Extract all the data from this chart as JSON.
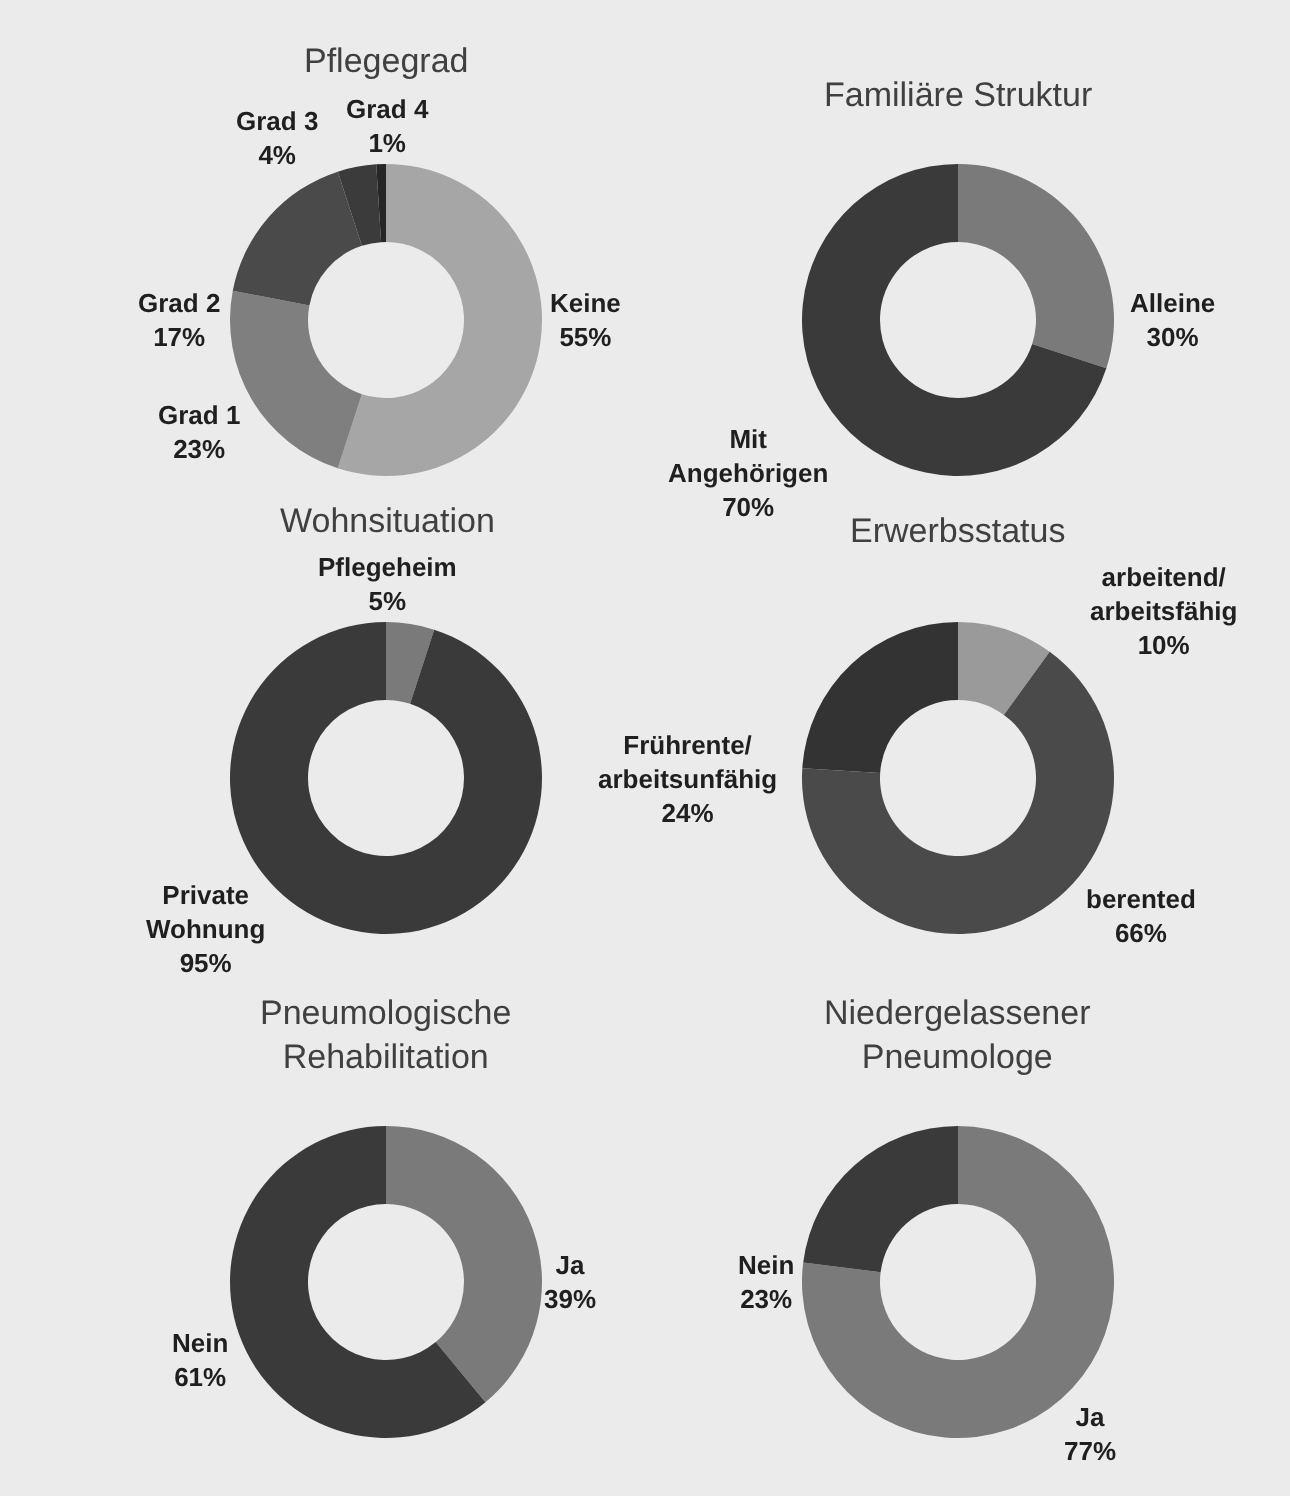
{
  "chart_data": [
    {
      "type": "donut",
      "title": "Pflegegrad",
      "categories": [
        "Keine",
        "Grad 1",
        "Grad 2",
        "Grad 3",
        "Grad 4"
      ],
      "values": [
        55,
        23,
        17,
        4,
        1
      ],
      "value_labels": [
        "55%",
        "23%",
        "17%",
        "4%",
        "1%"
      ],
      "colors": [
        "#a6a6a6",
        "#7f7f7f",
        "#4a4a4a",
        "#3b3b3b",
        "#262626"
      ]
    },
    {
      "type": "donut",
      "title": "Familiäre Struktur",
      "categories": [
        "Alleine",
        "Mit Angehörigen"
      ],
      "values": [
        30,
        70
      ],
      "value_labels": [
        "30%",
        "70%"
      ],
      "colors": [
        "#7a7a7a",
        "#3a3a3a"
      ]
    },
    {
      "type": "donut",
      "title": "Wohnsituation",
      "categories": [
        "Pflegeheim",
        "Private Wohnung"
      ],
      "values": [
        5,
        95
      ],
      "value_labels": [
        "5%",
        "95%"
      ],
      "colors": [
        "#7a7a7a",
        "#3a3a3a"
      ]
    },
    {
      "type": "donut",
      "title": "Erwerbsstatus",
      "categories": [
        "arbeitend/arbeitsfähig",
        "berented",
        "Frührente/arbeitsunfähig"
      ],
      "values": [
        10,
        66,
        24
      ],
      "value_labels": [
        "10%",
        "66%",
        "24%"
      ],
      "colors": [
        "#9a9a9a",
        "#4a4a4a",
        "#333333"
      ]
    },
    {
      "type": "donut",
      "title": "Pneumologische Rehabilitation",
      "categories": [
        "Ja",
        "Nein"
      ],
      "values": [
        39,
        61
      ],
      "value_labels": [
        "39%",
        "61%"
      ],
      "colors": [
        "#7a7a7a",
        "#3a3a3a"
      ]
    },
    {
      "type": "donut",
      "title": "Niedergelassener Pneumologe",
      "categories": [
        "Ja",
        "Nein"
      ],
      "values": [
        77,
        23
      ],
      "value_labels": [
        "77%",
        "23%"
      ],
      "colors": [
        "#7a7a7a",
        "#3a3a3a"
      ]
    }
  ]
}
